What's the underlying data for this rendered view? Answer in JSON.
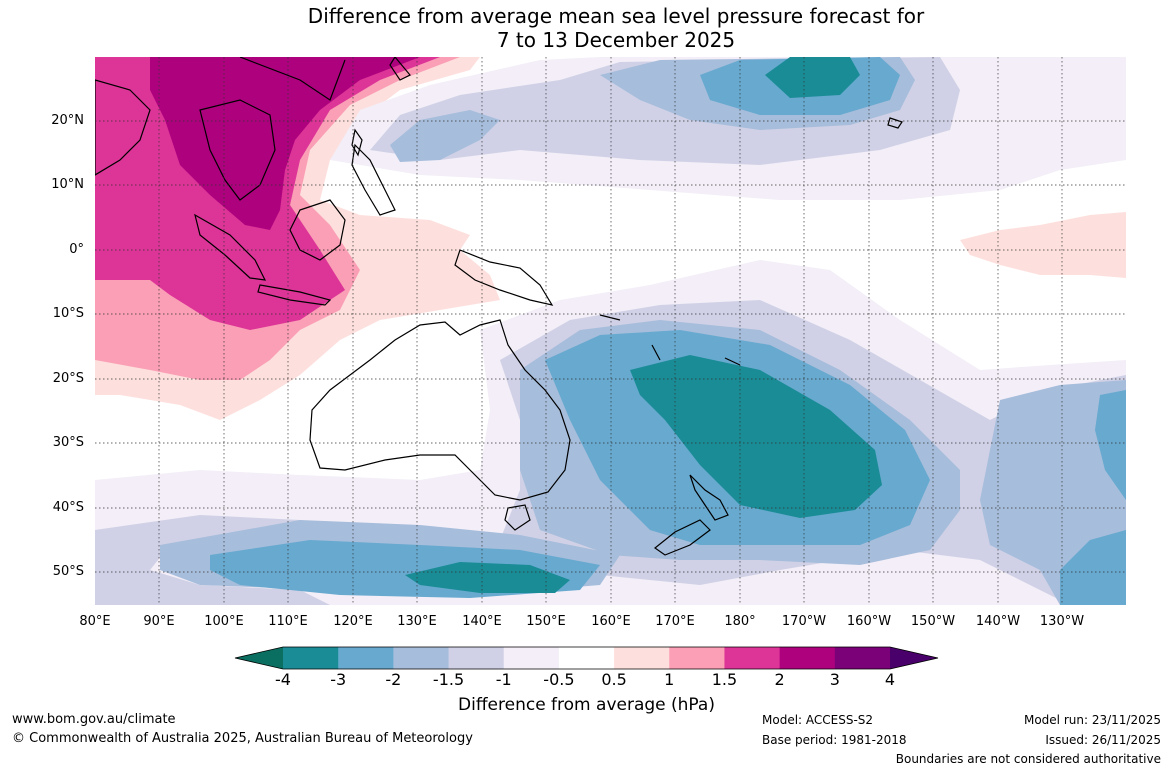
{
  "title": {
    "line1": "Difference from average mean sea level pressure forecast for",
    "line2": "7 to 13 December 2025"
  },
  "map": {
    "lat_labels": [
      "20°N",
      "10°N",
      "0°",
      "10°S",
      "20°S",
      "30°S",
      "40°S",
      "50°S"
    ],
    "lon_labels": [
      "80°E",
      "90°E",
      "100°E",
      "110°E",
      "120°E",
      "130°E",
      "140°E",
      "150°E",
      "160°E",
      "170°E",
      "180°",
      "170°W",
      "160°W",
      "150°W",
      "140°W",
      "130°W"
    ],
    "regions": [
      "High positive anomaly over Southeast Asia and South China Sea",
      "Strong negative anomaly over Tasman Sea east of Australia",
      "Negative anomaly band in Southern Ocean near 45°S-50°S",
      "Negative anomaly in North Pacific near 25°N 175°W"
    ]
  },
  "colorbar": {
    "ticks": [
      "-4",
      "-3",
      "-2",
      "-1.5",
      "-1",
      "-0.5",
      "0.5",
      "1",
      "1.5",
      "2",
      "3",
      "4"
    ],
    "colors": [
      "#0a6f60",
      "#1a8c96",
      "#67a9cf",
      "#a6bddb",
      "#d0d1e6",
      "#f3eef7",
      "#ffffff",
      "#fde0dd",
      "#fa9fb5",
      "#dd3497",
      "#ae017e",
      "#7a0177",
      "#49006a"
    ],
    "label": "Difference from average (hPa)"
  },
  "footer": {
    "website": "www.bom.gov.au/climate",
    "copyright": "© Commonwealth of Australia 2025, Australian Bureau of Meteorology",
    "model": "Model: ACCESS-S2",
    "base_period": "Base period: 1981-2018",
    "model_run": "Model run: 23/11/2025",
    "issued": "Issued: 26/11/2025",
    "disclaimer": "Boundaries are not considered authoritative"
  }
}
